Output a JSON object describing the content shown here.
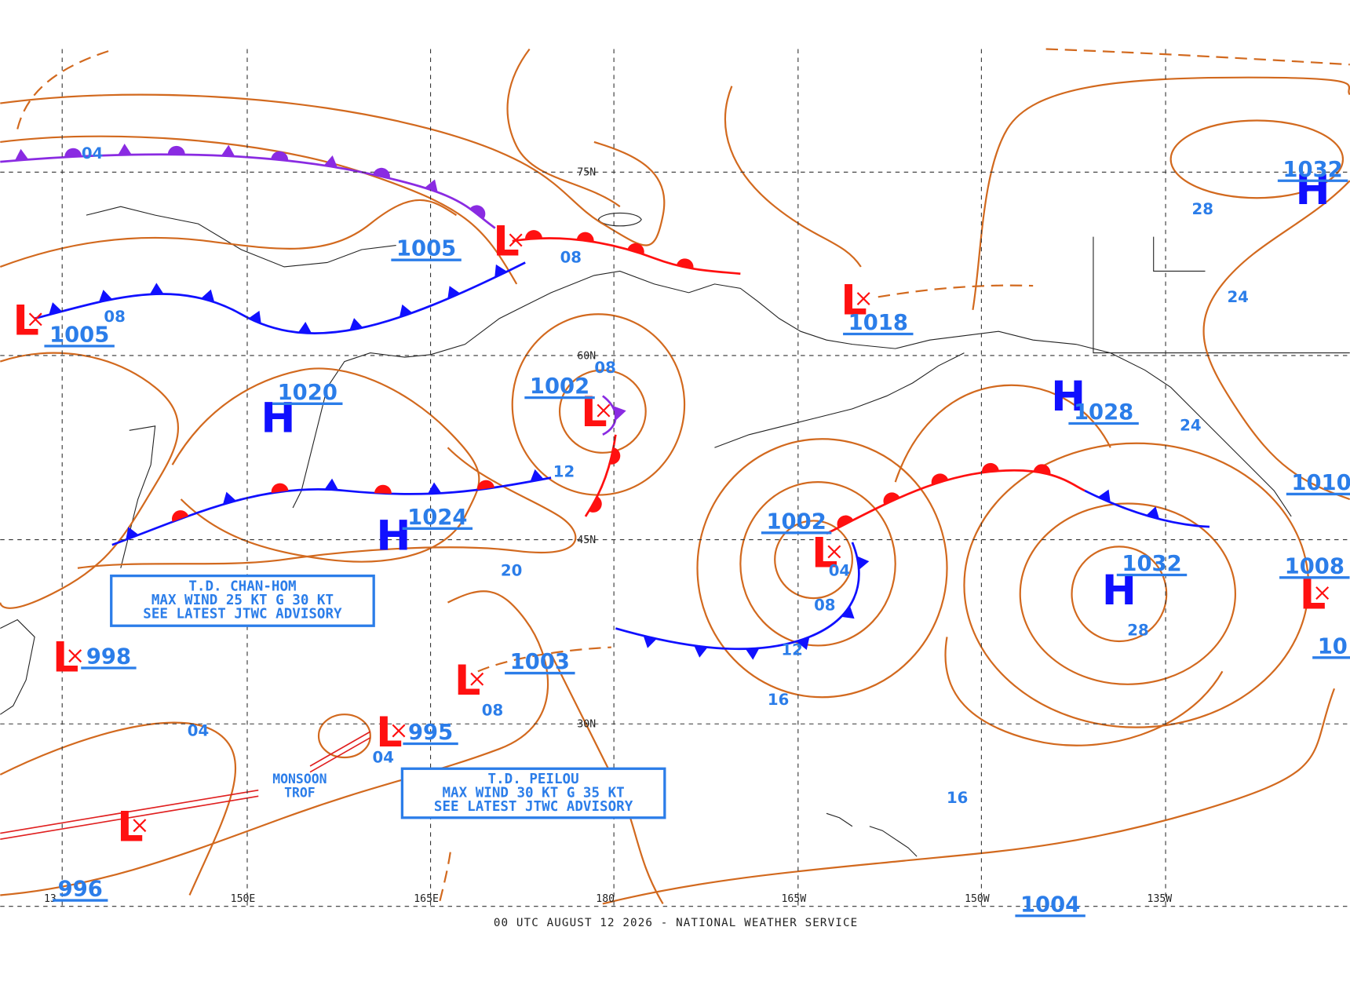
{
  "map": {
    "footer": "00 UTC AUGUST 12 2026 - NATIONAL WEATHER SERVICE",
    "latitude_labels": [
      "75N",
      "60N",
      "45N",
      "30N"
    ],
    "longitude_labels": [
      "13",
      "150E",
      "165E",
      "180",
      "165W",
      "150W",
      "135W"
    ],
    "pressure_centers": [
      {
        "symbol": "L",
        "pressure": "1005"
      },
      {
        "symbol": "L",
        "pressure": "1005"
      },
      {
        "symbol": "H",
        "pressure": "1020"
      },
      {
        "symbol": "L",
        "pressure": "1002"
      },
      {
        "symbol": "H",
        "pressure": "1024"
      },
      {
        "symbol": "L",
        "pressure": "998"
      },
      {
        "symbol": "L",
        "pressure": "1003"
      },
      {
        "symbol": "L",
        "pressure": "995"
      },
      {
        "symbol": "L",
        "pressure": "996"
      },
      {
        "symbol": "L",
        "pressure": "1002"
      },
      {
        "symbol": "L",
        "pressure": "1018"
      },
      {
        "symbol": "H",
        "pressure": "1028"
      },
      {
        "symbol": "H",
        "pressure": "1032"
      },
      {
        "symbol": "H",
        "pressure": "1032"
      },
      {
        "symbol": "L",
        "pressure": "1008"
      }
    ],
    "pressure_labels": [
      "1010",
      "10",
      "1004"
    ],
    "isobar_labels": [
      "04",
      "08",
      "08",
      "08",
      "12",
      "20",
      "04",
      "04",
      "08",
      "08",
      "12",
      "16",
      "16",
      "28",
      "24",
      "24",
      "28",
      "04"
    ],
    "advisories": [
      {
        "lines": [
          "T.D. CHAN-HOM",
          "MAX WIND 25 KT G 30 KT",
          "SEE LATEST JTWC ADVISORY"
        ]
      },
      {
        "lines": [
          "T.D. PEILOU",
          "MAX WIND 30 KT G 35 KT",
          "SEE LATEST JTWC ADVISORY"
        ]
      }
    ],
    "annotations": [
      "MONSOON",
      "TROF"
    ]
  }
}
